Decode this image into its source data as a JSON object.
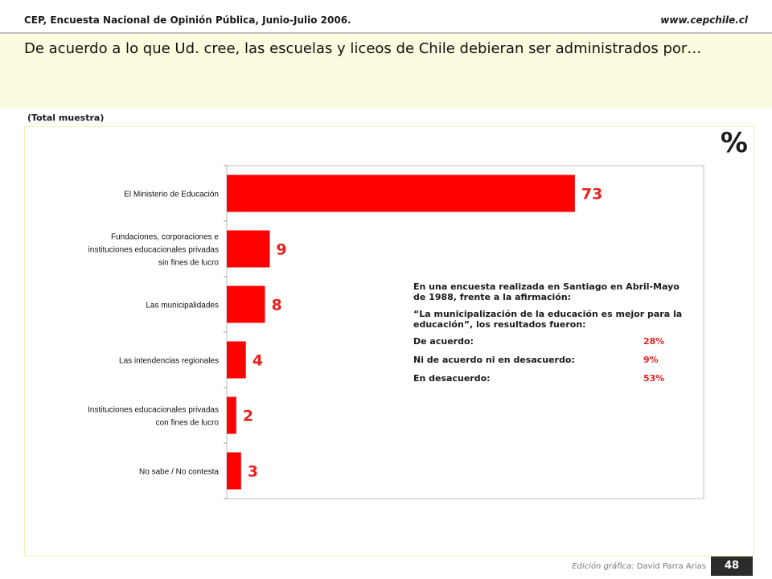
{
  "header": {
    "source": "CEP, Encuesta Nacional de Opinión Pública, Junio-Julio 2006.",
    "url": "www.cepchile.cl"
  },
  "title": "De acuerdo a lo que Ud. cree,  las escuelas y liceos de Chile debieran ser administrados por…",
  "sample_label": "(Total muestra)",
  "unit_label": "%",
  "chart_data": {
    "type": "bar",
    "orientation": "horizontal",
    "categories": [
      [
        "El Ministerio de Educación"
      ],
      [
        "Fundaciones, corporaciones e",
        "instituciones educacionales privadas",
        "sin fines de lucro"
      ],
      [
        "Las municipalidades"
      ],
      [
        "Las intendencias regionales"
      ],
      [
        "Instituciones educacionales privadas",
        "con fines de lucro"
      ],
      [
        "No sabe / No contesta"
      ]
    ],
    "values": [
      73,
      9,
      8,
      4,
      2,
      3
    ],
    "xlim": [
      0,
      100
    ],
    "bar_color": "#ff0000",
    "label_color": "#e8231f",
    "grid": false
  },
  "note": {
    "intro": "En una encuesta realizada en Santiago en Abril-Mayo de 1988, frente a la afirmación:",
    "quote": "“La municipalización de la educación es mejor para la educación”, los resultados fueron:",
    "rows": [
      {
        "label": "De acuerdo:",
        "value": "28%"
      },
      {
        "label": "Ni de acuerdo ni en desacuerdo:",
        "value": "9%"
      },
      {
        "label": "En desacuerdo:",
        "value": "53%"
      }
    ]
  },
  "footer": {
    "credit_prefix": "Edición gráfica:",
    "credit_name": " David Parra Arias",
    "page": "48"
  }
}
